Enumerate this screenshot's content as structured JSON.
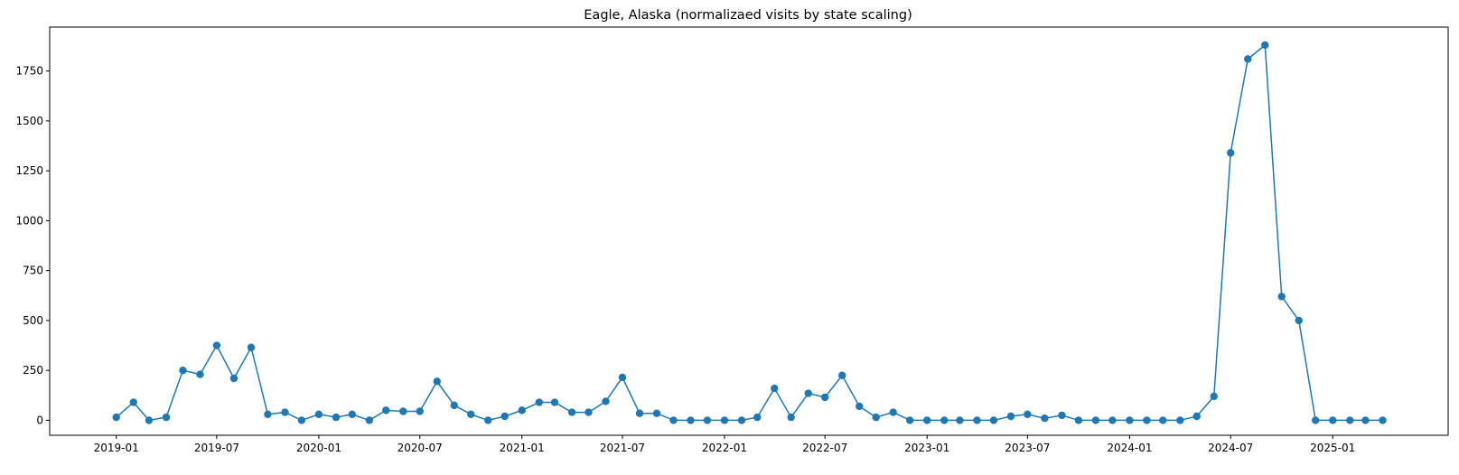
{
  "chart_data": {
    "type": "line",
    "title": "Eagle, Alaska (normalizaed visits by state scaling)",
    "xlabel": "",
    "ylabel": "",
    "x_start": "2019-01",
    "x_end": "2025-04",
    "xlim": [
      "2018-09-03",
      "2025-07-28"
    ],
    "ylim": [
      -75,
      1970
    ],
    "x_ticks": [
      "2019-01",
      "2019-07",
      "2020-01",
      "2020-07",
      "2021-01",
      "2021-07",
      "2022-01",
      "2022-07",
      "2023-01",
      "2023-07",
      "2024-01",
      "2024-07",
      "2025-01"
    ],
    "y_ticks": [
      0,
      250,
      500,
      750,
      1000,
      1250,
      1500,
      1750
    ],
    "grid": false,
    "marker": "circle",
    "series": [
      {
        "color": "#1f77b4",
        "x": [
          "2019-01",
          "2019-02",
          "2019-03",
          "2019-04",
          "2019-05",
          "2019-06",
          "2019-07",
          "2019-08",
          "2019-09",
          "2019-10",
          "2019-11",
          "2019-12",
          "2020-01",
          "2020-02",
          "2020-03",
          "2020-04",
          "2020-05",
          "2020-06",
          "2020-07",
          "2020-08",
          "2020-09",
          "2020-10",
          "2020-11",
          "2020-12",
          "2021-01",
          "2021-02",
          "2021-03",
          "2021-04",
          "2021-05",
          "2021-06",
          "2021-07",
          "2021-08",
          "2021-09",
          "2021-10",
          "2021-11",
          "2021-12",
          "2022-01",
          "2022-02",
          "2022-03",
          "2022-04",
          "2022-05",
          "2022-06",
          "2022-07",
          "2022-08",
          "2022-09",
          "2022-10",
          "2022-11",
          "2022-12",
          "2023-01",
          "2023-02",
          "2023-03",
          "2023-04",
          "2023-05",
          "2023-06",
          "2023-07",
          "2023-08",
          "2023-09",
          "2023-10",
          "2023-11",
          "2023-12",
          "2024-01",
          "2024-02",
          "2024-03",
          "2024-04",
          "2024-05",
          "2024-06",
          "2024-07",
          "2024-08",
          "2024-09",
          "2024-10",
          "2024-11",
          "2024-12",
          "2025-01",
          "2025-02",
          "2025-03",
          "2025-04"
        ],
        "values": [
          15,
          90,
          0,
          15,
          250,
          230,
          375,
          210,
          365,
          30,
          40,
          0,
          30,
          15,
          30,
          0,
          50,
          45,
          45,
          195,
          75,
          30,
          0,
          20,
          50,
          90,
          90,
          40,
          40,
          95,
          215,
          35,
          35,
          0,
          0,
          0,
          0,
          0,
          15,
          160,
          15,
          135,
          115,
          225,
          70,
          15,
          40,
          0,
          0,
          0,
          0,
          0,
          0,
          20,
          30,
          10,
          25,
          0,
          0,
          0,
          0,
          0,
          0,
          0,
          20,
          120,
          1340,
          1810,
          1880,
          620,
          500,
          0,
          0,
          0,
          0,
          0
        ]
      }
    ]
  }
}
